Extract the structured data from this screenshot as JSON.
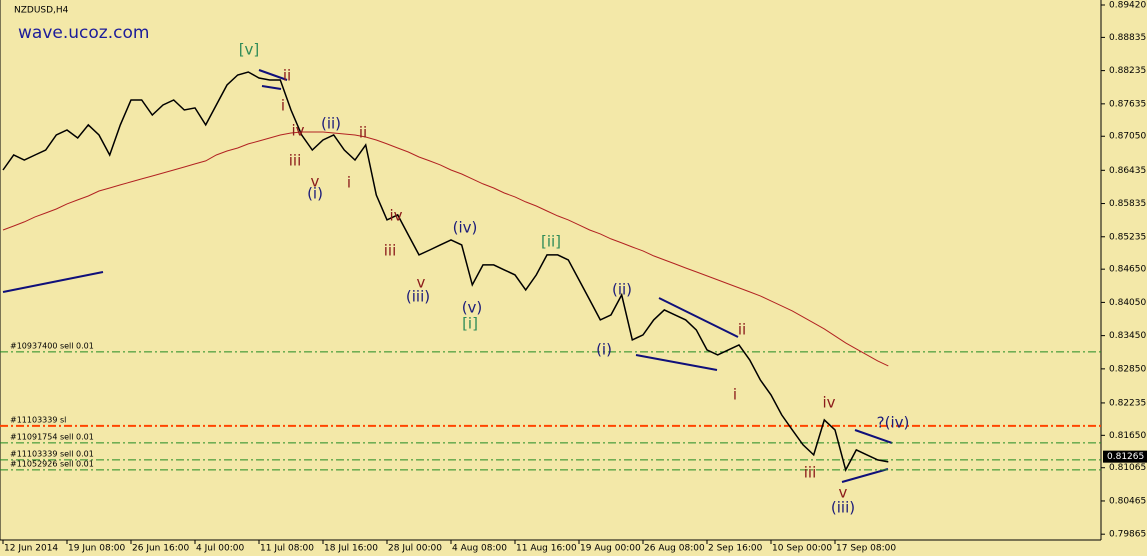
{
  "chart_data": {
    "type": "line",
    "title": "NZDUSD,H4",
    "subtitle": "wave.ucoz.com",
    "ylim": [
      0.7976,
      0.8951
    ],
    "yticks": [
      {
        "value": 0.8942,
        "label": "0.89420"
      },
      0.88835,
      0.88235,
      0.87635,
      {
        "value": 0.8705,
        "label": "0.87050"
      },
      0.86435,
      0.85835,
      0.85235,
      {
        "value": 0.8465,
        "label": "0.84650"
      },
      {
        "value": 0.8405,
        "label": "0.84050"
      },
      {
        "value": 0.8345,
        "label": "0.83450"
      },
      {
        "value": 0.8285,
        "label": "0.82850"
      },
      0.82235,
      {
        "value": 0.8165,
        "label": "0.81650"
      },
      0.81065,
      0.80465,
      0.79865
    ],
    "categories": [
      "12 Jun 2014",
      null,
      null,
      null,
      null,
      null,
      "19 Jun 08:00",
      null,
      null,
      null,
      null,
      null,
      "26 Jun 16:00",
      null,
      null,
      null,
      null,
      null,
      "4 Jul 00:00",
      null,
      null,
      null,
      null,
      null,
      "11 Jul 08:00",
      null,
      null,
      null,
      null,
      null,
      "18 Jul 16:00",
      null,
      null,
      null,
      null,
      null,
      "28 Jul 00:00",
      null,
      null,
      null,
      null,
      null,
      "4 Aug 08:00",
      null,
      null,
      null,
      null,
      null,
      "11 Aug 16:00",
      null,
      null,
      null,
      null,
      null,
      "19 Aug 00:00",
      null,
      null,
      null,
      null,
      null,
      "26 Aug 08:00",
      null,
      null,
      null,
      null,
      null,
      "2 Sep 16:00",
      null,
      null,
      null,
      null,
      null,
      "10 Sep 00:00",
      null,
      null,
      null,
      null,
      null,
      "17 Sep 08:00",
      null,
      null,
      null,
      null,
      null
    ],
    "series": [
      {
        "name": "NZDUSD",
        "color": "#000000",
        "values": [
          0.86441,
          0.86712,
          0.86622,
          0.86712,
          0.86802,
          0.87073,
          0.87163,
          0.87019,
          0.87254,
          0.87073,
          0.86712,
          0.87254,
          0.87705,
          0.87705,
          0.87434,
          0.87615,
          0.87705,
          0.87524,
          0.87561,
          0.87254,
          0.87615,
          0.87976,
          0.88156,
          0.8821,
          0.88102,
          0.88066,
          0.88066,
          0.87524,
          0.87073,
          0.86802,
          0.86983,
          0.87073,
          0.86802,
          0.86622,
          0.86893,
          0.8599,
          0.85539,
          0.85629,
          0.85268,
          0.84907,
          0.84997,
          0.85088,
          0.85178,
          0.85088,
          0.84366,
          0.84727,
          0.84727,
          0.84636,
          0.84546,
          0.84275,
          0.84546,
          0.84907,
          0.84907,
          0.84817,
          0.84456,
          0.84095,
          0.83734,
          0.83824,
          0.84185,
          0.83373,
          0.83463,
          0.83734,
          0.83914,
          0.83824,
          0.83734,
          0.83553,
          0.83192,
          0.83102,
          0.83192,
          0.83283,
          0.83012,
          0.82651,
          0.8238,
          0.82019,
          0.81748,
          0.81478,
          0.81297,
          0.81929,
          0.81748,
          0.81026,
          0.81387,
          0.81297,
          0.81207,
          0.81171
        ]
      },
      {
        "name": "MA",
        "color": "#b22222",
        "values": [
          0.85358,
          0.8543,
          0.85503,
          0.85593,
          0.85665,
          0.85737,
          0.85828,
          0.859,
          0.85972,
          0.86062,
          0.86116,
          0.86171,
          0.86225,
          0.86279,
          0.86333,
          0.86387,
          0.86441,
          0.86495,
          0.8655,
          0.86604,
          0.86712,
          0.86784,
          0.86838,
          0.86911,
          0.86965,
          0.87019,
          0.87073,
          0.87109,
          0.87127,
          0.87127,
          0.87127,
          0.87109,
          0.87091,
          0.87073,
          0.87037,
          0.86983,
          0.86911,
          0.86838,
          0.86766,
          0.86676,
          0.86604,
          0.86532,
          0.86441,
          0.86369,
          0.86279,
          0.86189,
          0.86116,
          0.86026,
          0.85954,
          0.85864,
          0.85791,
          0.85701,
          0.85611,
          0.85539,
          0.85449,
          0.85358,
          0.85286,
          0.85196,
          0.85124,
          0.85051,
          0.84979,
          0.84889,
          0.84817,
          0.84745,
          0.84672,
          0.846,
          0.84528,
          0.84456,
          0.84384,
          0.84311,
          0.84239,
          0.84167,
          0.84077,
          0.83986,
          0.83896,
          0.83788,
          0.8368,
          0.83571,
          0.83445,
          0.83319,
          0.8321,
          0.83102,
          0.82994,
          0.82903
        ]
      }
    ],
    "last_price": 0.81265,
    "orders": [
      {
        "label": "#10937400 sell 0.01",
        "price": 0.83156,
        "color": "#228b22"
      },
      {
        "label": "#11103339 sl",
        "price": 0.8182,
        "color": "#ff4500"
      },
      {
        "label": "#11091754 sell 0.01",
        "price": 0.81513,
        "color": "#228b22"
      },
      {
        "label": "#11103339 sell 0.01",
        "price": 0.81207,
        "color": "#228b22"
      },
      {
        "label": "#11052926 sell 0.01",
        "price": 0.81026,
        "color": "#228b22"
      }
    ],
    "annotations": [
      "[v]",
      "ii",
      "i",
      "iv",
      "iii",
      "(ii)",
      "ii",
      "v",
      "(i)",
      "i",
      "iv",
      "iii",
      "(iv)",
      "[ii]",
      "v",
      "(iii)",
      "(v)",
      "[i]",
      "(ii)",
      "(i)",
      "ii",
      "i",
      "iv",
      "?(iv)",
      "iii",
      "v",
      "(iii)"
    ]
  }
}
